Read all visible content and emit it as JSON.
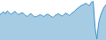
{
  "chart_data": {
    "type": "area",
    "values": [
      72,
      75,
      78,
      74,
      80,
      76,
      73,
      75,
      79,
      76,
      72,
      74,
      76,
      74,
      70,
      68,
      72,
      74,
      70,
      67,
      68,
      70,
      72,
      70,
      68,
      71,
      73,
      71,
      68,
      66,
      70,
      72,
      74,
      71,
      69,
      72,
      75,
      73,
      70,
      74,
      77,
      80,
      84,
      87,
      90,
      92,
      94,
      96,
      93,
      91,
      98,
      100,
      45,
      20,
      55,
      70,
      80,
      88,
      93
    ],
    "color": "#3a8fc4",
    "xlim": [
      0,
      58
    ],
    "ylim": [
      18,
      103
    ],
    "grid": false,
    "tick_labels": false
  }
}
